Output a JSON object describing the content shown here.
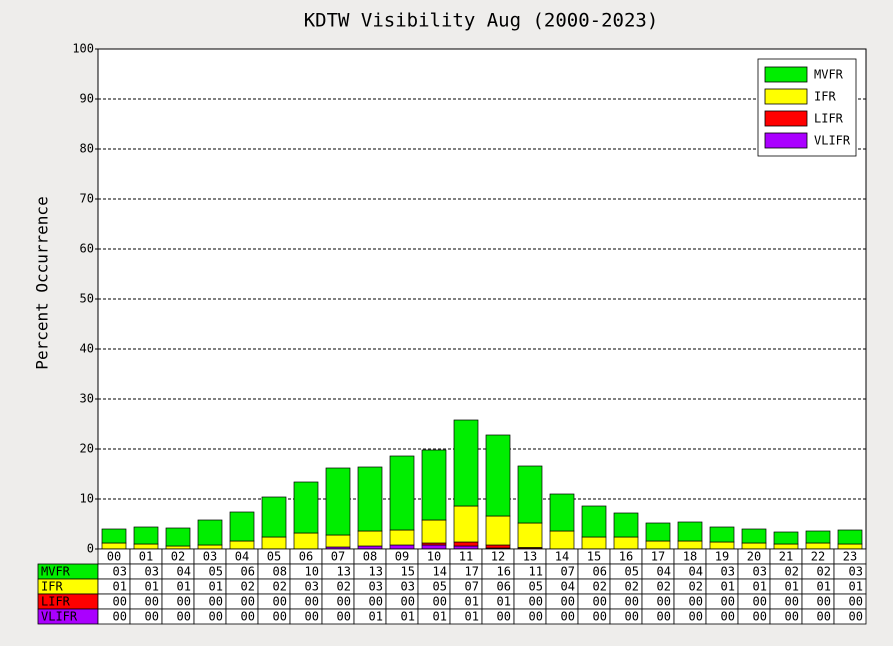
{
  "chart_data": {
    "type": "bar",
    "stacked": true,
    "title": "KDTW Visibility Aug (2000-2023)",
    "y_label": "Percent Occurrence",
    "categories": [
      "00",
      "01",
      "02",
      "03",
      "04",
      "05",
      "06",
      "07",
      "08",
      "09",
      "10",
      "11",
      "12",
      "13",
      "14",
      "15",
      "16",
      "17",
      "18",
      "19",
      "20",
      "21",
      "22",
      "23"
    ],
    "series": [
      {
        "name": "MVFR",
        "color": "#00ee00",
        "values": [
          2.8,
          3.4,
          3.6,
          5.0,
          5.8,
          8.0,
          10.2,
          13.4,
          12.8,
          14.8,
          14.0,
          17.2,
          16.2,
          11.4,
          7.4,
          6.2,
          4.8,
          3.6,
          3.8,
          3.0,
          2.8,
          2.4,
          2.4,
          2.8
        ],
        "value_labels": [
          "03",
          "03",
          "04",
          "05",
          "06",
          "08",
          "10",
          "13",
          "13",
          "15",
          "14",
          "17",
          "16",
          "11",
          "07",
          "06",
          "05",
          "04",
          "04",
          "03",
          "03",
          "02",
          "02",
          "03"
        ]
      },
      {
        "name": "IFR",
        "color": "#ffff00",
        "values": [
          1.2,
          1.0,
          0.6,
          0.8,
          1.6,
          2.4,
          3.2,
          2.4,
          3.0,
          3.0,
          4.6,
          7.2,
          5.8,
          4.9,
          3.6,
          2.4,
          2.4,
          1.6,
          1.6,
          1.4,
          1.2,
          1.0,
          1.2,
          1.0
        ],
        "value_labels": [
          "01",
          "01",
          "01",
          "01",
          "02",
          "02",
          "03",
          "02",
          "03",
          "03",
          "05",
          "07",
          "06",
          "05",
          "04",
          "02",
          "02",
          "02",
          "02",
          "01",
          "01",
          "01",
          "01",
          "01"
        ]
      },
      {
        "name": "LIFR",
        "color": "#ff0000",
        "values": [
          0,
          0,
          0,
          0,
          0,
          0,
          0,
          0,
          0,
          0,
          0.4,
          0.8,
          0.6,
          0.2,
          0,
          0,
          0,
          0,
          0,
          0,
          0,
          0,
          0,
          0
        ],
        "value_labels": [
          "00",
          "00",
          "00",
          "00",
          "00",
          "00",
          "00",
          "00",
          "00",
          "00",
          "00",
          "01",
          "01",
          "00",
          "00",
          "00",
          "00",
          "00",
          "00",
          "00",
          "00",
          "00",
          "00",
          "00"
        ]
      },
      {
        "name": "VLIFR",
        "color": "#aa00ff",
        "values": [
          0,
          0,
          0,
          0,
          0,
          0,
          0,
          0.4,
          0.6,
          0.8,
          0.8,
          0.6,
          0.2,
          0.1,
          0,
          0,
          0,
          0,
          0,
          0,
          0,
          0,
          0,
          0
        ],
        "value_labels": [
          "00",
          "00",
          "00",
          "00",
          "00",
          "00",
          "00",
          "00",
          "01",
          "01",
          "01",
          "01",
          "00",
          "00",
          "00",
          "00",
          "00",
          "00",
          "00",
          "00",
          "00",
          "00",
          "00",
          "00"
        ]
      }
    ],
    "ylim": [
      0,
      100
    ],
    "yticks": [
      0,
      10,
      20,
      30,
      40,
      50,
      60,
      70,
      80,
      90,
      100
    ],
    "grid": true,
    "legend": "upper right"
  }
}
